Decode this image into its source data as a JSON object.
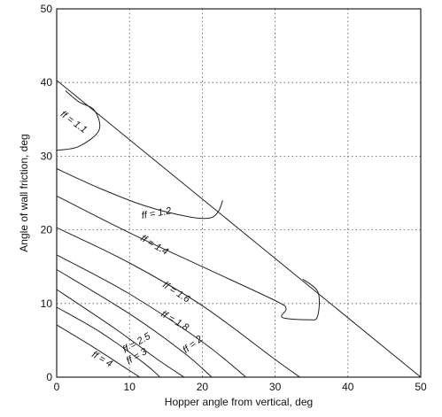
{
  "chart_data": {
    "type": "line",
    "xlabel": "Hopper angle from vertical, deg",
    "ylabel": "Angle of wall friction, deg",
    "xlim": [
      0,
      50
    ],
    "ylim": [
      0,
      50
    ],
    "xticks": [
      "0",
      "10",
      "20",
      "30",
      "40",
      "50"
    ],
    "yticks": [
      "0",
      "10",
      "20",
      "30",
      "40",
      "50"
    ],
    "grid": true,
    "boundary": {
      "name": "",
      "points": [
        [
          0,
          40.3
        ],
        [
          50,
          0
        ]
      ]
    },
    "series": [
      {
        "name": "ff = 1.1",
        "points": [
          [
            0,
            30.8
          ],
          [
            3,
            31.3
          ],
          [
            5.8,
            33.5
          ],
          [
            5.2,
            36.2
          ],
          [
            3,
            37.4
          ],
          [
            1.2,
            38.9
          ]
        ]
      },
      {
        "name": "ff = 1.2",
        "points": [
          [
            0,
            28.3
          ],
          [
            6,
            25.6
          ],
          [
            12,
            23.3
          ],
          [
            18,
            21.8
          ],
          [
            21,
            21.6
          ],
          [
            22.2,
            22.5
          ],
          [
            22.8,
            24
          ]
        ]
      },
      {
        "name": "ff = 1.4",
        "points": [
          [
            0,
            24.6
          ],
          [
            10,
            19.6
          ],
          [
            20,
            15
          ],
          [
            30,
            10.4
          ],
          [
            31.5,
            9.3
          ],
          [
            31,
            8.1
          ],
          [
            34.5,
            7.8
          ],
          [
            35.8,
            8.2
          ],
          [
            35.9,
            11.5
          ],
          [
            33.8,
            13.3
          ]
        ]
      },
      {
        "name": "ff = 1.6",
        "points": [
          [
            0,
            20.3
          ],
          [
            10,
            15.5
          ],
          [
            20,
            9.7
          ],
          [
            30,
            2.4
          ],
          [
            33.4,
            0
          ]
        ]
      },
      {
        "name": "ff = 1.8",
        "points": [
          [
            0,
            16.6
          ],
          [
            10,
            11.3
          ],
          [
            20,
            4.8
          ],
          [
            26,
            0
          ]
        ]
      },
      {
        "name": "ff = 2",
        "points": [
          [
            0,
            14.6
          ],
          [
            10,
            8.6
          ],
          [
            17.5,
            3.3
          ],
          [
            21.3,
            0
          ]
        ]
      },
      {
        "name": "ff = 2.5",
        "points": [
          [
            0,
            11.9
          ],
          [
            8,
            6.6
          ],
          [
            14,
            2.3
          ],
          [
            17.5,
            0
          ]
        ]
      },
      {
        "name": "ff = 3",
        "points": [
          [
            0,
            9.5
          ],
          [
            6,
            6.1
          ],
          [
            12,
            1.9
          ],
          [
            14.2,
            0
          ]
        ]
      },
      {
        "name": "ff = 4",
        "points": [
          [
            0,
            7.1
          ],
          [
            5,
            4.1
          ],
          [
            10,
            0.9
          ],
          [
            11.4,
            0
          ]
        ]
      }
    ],
    "labels": [
      {
        "text": "ff = 1.1",
        "at": [
          2.3,
          34.6
        ],
        "angle": 36
      },
      {
        "text": "ff = 1.2",
        "at": [
          13.7,
          22.2
        ],
        "angle": -10
      },
      {
        "text": "ff = 1.4",
        "at": [
          13.4,
          17.9
        ],
        "angle": 30
      },
      {
        "text": "ff = 1.6",
        "at": [
          16.4,
          11.5
        ],
        "angle": 33
      },
      {
        "text": "ff = 1.8",
        "at": [
          16.2,
          7.6
        ],
        "angle": 30
      },
      {
        "text": "ff = 2",
        "at": [
          18.7,
          4.4
        ],
        "angle": -38
      },
      {
        "text": "ff = 2.5",
        "at": [
          11,
          4.6
        ],
        "angle": -30
      },
      {
        "text": "ff = 3",
        "at": [
          11,
          2.8
        ],
        "angle": -30
      },
      {
        "text": "ff = 4",
        "at": [
          6.2,
          2.4
        ],
        "angle": 30
      }
    ]
  }
}
